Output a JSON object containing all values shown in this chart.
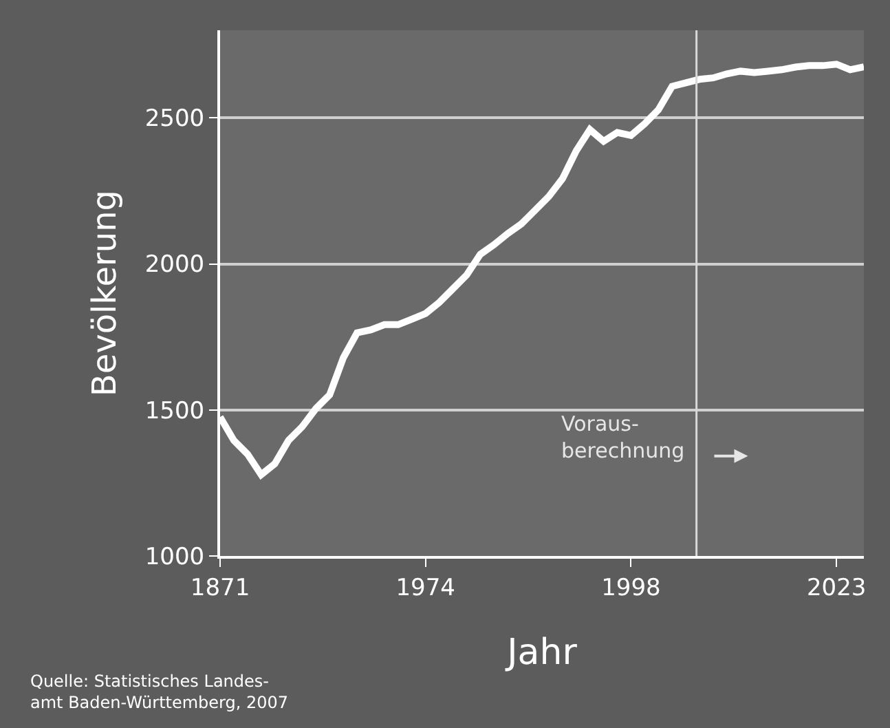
{
  "chart_data": {
    "type": "line",
    "xlabel": "Jahr",
    "ylabel": "Bevölkerung",
    "categories": [
      "1871",
      null,
      null,
      null,
      null,
      null,
      null,
      null,
      null,
      null,
      null,
      null,
      null,
      null,
      null,
      "1974",
      null,
      null,
      null,
      null,
      null,
      null,
      null,
      null,
      null,
      null,
      null,
      null,
      null,
      null,
      "1998",
      null,
      null,
      null,
      null,
      null,
      null,
      null,
      null,
      null,
      null,
      null,
      null,
      null,
      null,
      "2023",
      null,
      null
    ],
    "series": [
      {
        "color": "#ffffff",
        "values": [
          1476,
          1396,
          1349,
          1278,
          1316,
          1396,
          1443,
          1505,
          1552,
          1679,
          1764,
          1774,
          1792,
          1792,
          1811,
          1830,
          1868,
          1915,
          1962,
          2033,
          2066,
          2104,
          2137,
          2184,
          2231,
          2292,
          2387,
          2460,
          2420,
          2450,
          2440,
          2480,
          2528,
          2608,
          2620,
          2632,
          2637,
          2651,
          2660,
          2655,
          2660,
          2665,
          2674,
          2679,
          2679,
          2684,
          2665,
          2675
        ]
      }
    ],
    "ylim": [
      1000,
      2800
    ],
    "yticks": [
      1000,
      1500,
      2000,
      2500
    ],
    "grid": "y",
    "marker": "none",
    "line_style": "solid",
    "annotations": [
      "Voraus-\nberechnung",
      "Quelle: Statistisches Landes-\namt Baden-Württemberg, 2007"
    ]
  }
}
